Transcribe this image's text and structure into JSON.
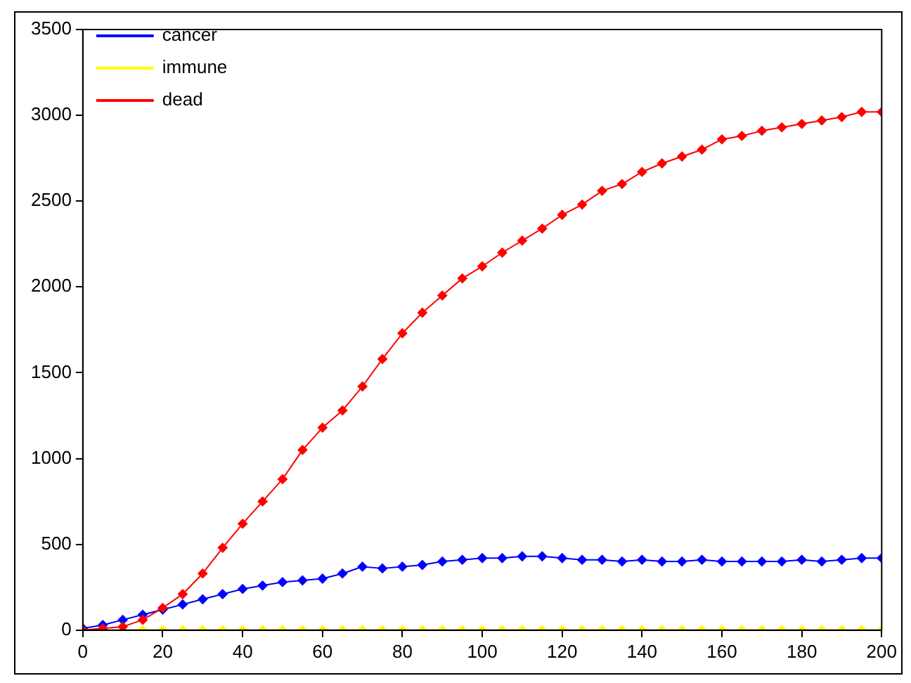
{
  "chart_data": {
    "type": "line",
    "x": [
      0,
      5,
      10,
      15,
      20,
      25,
      30,
      35,
      40,
      45,
      50,
      55,
      60,
      65,
      70,
      75,
      80,
      85,
      90,
      95,
      100,
      105,
      110,
      115,
      120,
      125,
      130,
      135,
      140,
      145,
      150,
      155,
      160,
      165,
      170,
      175,
      180,
      185,
      190,
      195,
      200
    ],
    "series": [
      {
        "name": "cancer",
        "color": "#0000ff",
        "values": [
          10,
          30,
          60,
          90,
          120,
          150,
          180,
          210,
          240,
          260,
          280,
          290,
          300,
          330,
          370,
          360,
          370,
          380,
          400,
          410,
          420,
          420,
          430,
          430,
          420,
          410,
          410,
          400,
          410,
          400,
          400,
          410,
          400,
          400,
          400,
          400,
          410,
          400,
          410,
          420,
          420
        ]
      },
      {
        "name": "immune",
        "color": "#ffff00",
        "values": [
          null,
          null,
          0,
          0,
          0,
          0,
          0,
          0,
          0,
          0,
          0,
          0,
          0,
          0,
          0,
          0,
          0,
          0,
          0,
          0,
          0,
          0,
          0,
          0,
          0,
          0,
          0,
          0,
          0,
          0,
          0,
          0,
          0,
          0,
          0,
          0,
          0,
          0,
          0,
          0,
          0
        ]
      },
      {
        "name": "dead",
        "color": "#ff0000",
        "values": [
          0,
          10,
          20,
          60,
          130,
          210,
          330,
          480,
          620,
          750,
          880,
          1050,
          1180,
          1280,
          1420,
          1580,
          1730,
          1850,
          1950,
          2050,
          2120,
          2200,
          2270,
          2340,
          2420,
          2480,
          2560,
          2600,
          2670,
          2720,
          2760,
          2800,
          2860,
          2880,
          2910,
          2930,
          2950,
          2970,
          2990,
          3020,
          3020
        ]
      }
    ],
    "xlim": [
      0,
      200
    ],
    "xticks": [
      0,
      20,
      40,
      60,
      80,
      100,
      120,
      140,
      160,
      180,
      200
    ],
    "ylim": [
      0,
      3500
    ],
    "yticks": [
      0,
      500,
      1000,
      1500,
      2000,
      2500,
      3000,
      3500
    ],
    "grid": false,
    "legend": "top left",
    "marker": "diamond",
    "line_style": "solid"
  }
}
